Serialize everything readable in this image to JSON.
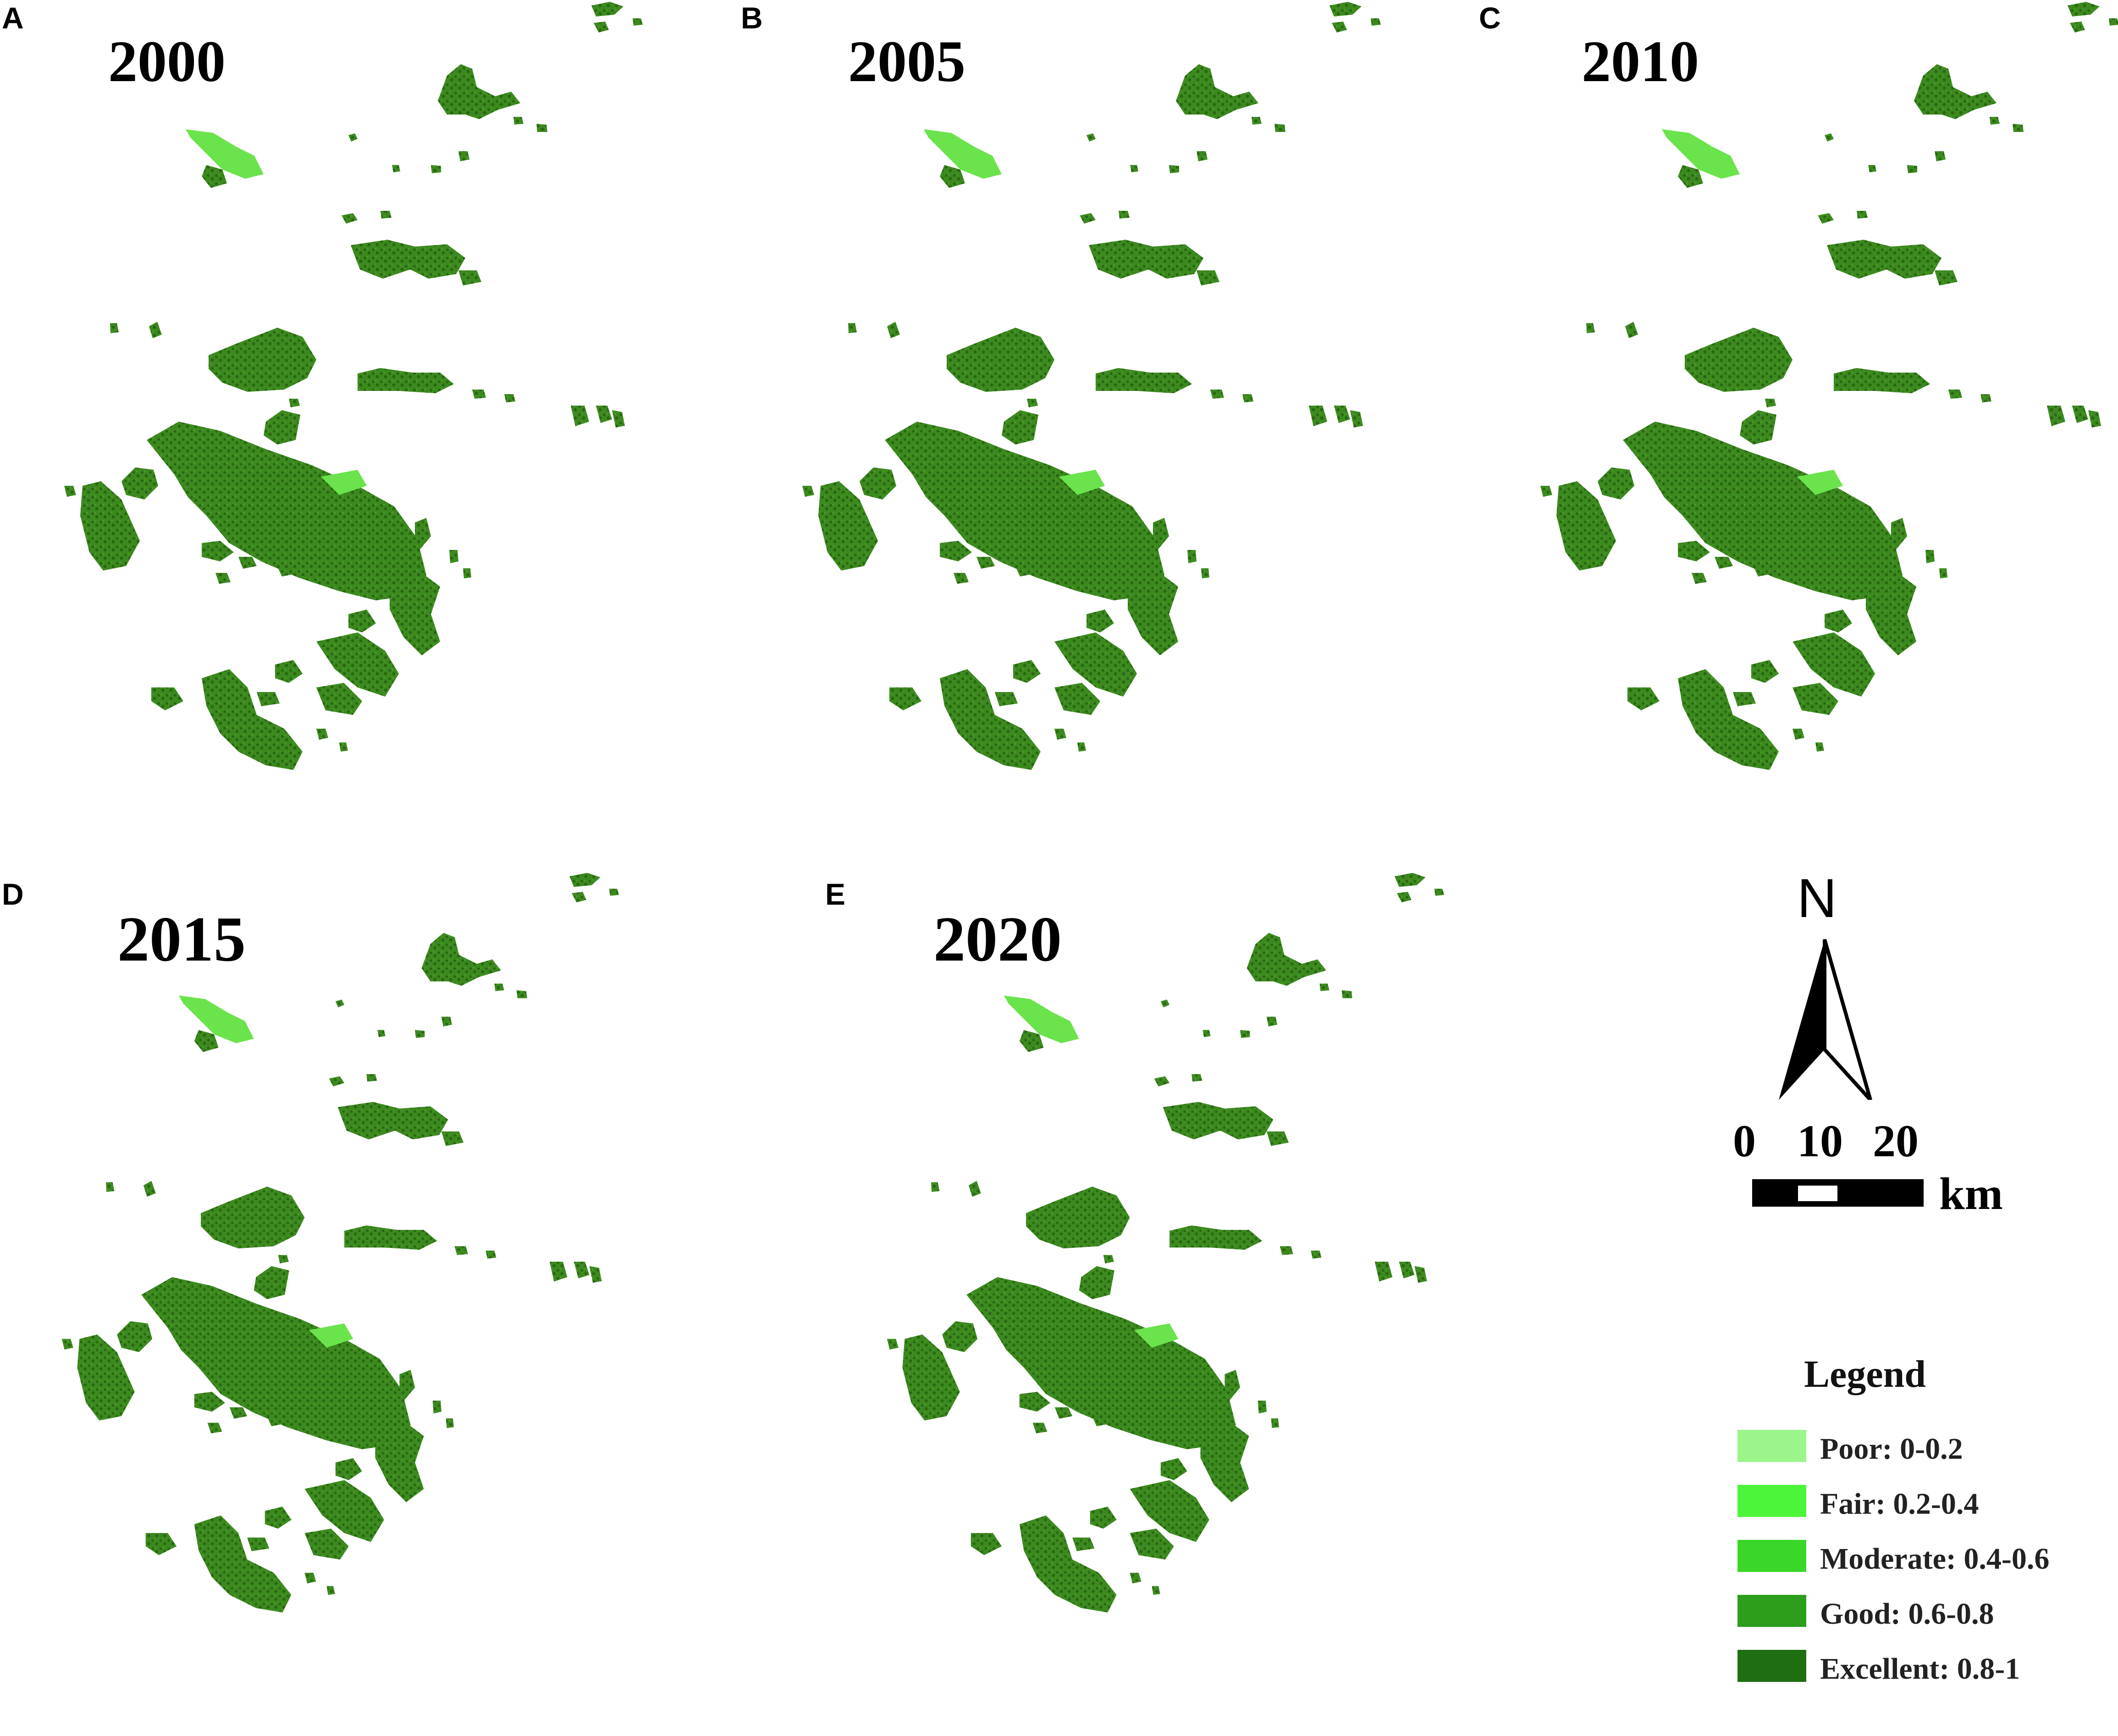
{
  "panels": [
    {
      "letter": "A",
      "year": "2000"
    },
    {
      "letter": "B",
      "year": "2005"
    },
    {
      "letter": "C",
      "year": "2010"
    },
    {
      "letter": "D",
      "year": "2015"
    },
    {
      "letter": "E",
      "year": "2020"
    }
  ],
  "north_arrow": {
    "label": "N"
  },
  "scale_bar": {
    "ticks": [
      "0",
      "10",
      "20"
    ],
    "unit": "km"
  },
  "legend": {
    "title": "Legend",
    "items": [
      {
        "label": "Poor: 0-0.2",
        "color": "#9cf58a"
      },
      {
        "label": "Fair: 0.2-0.4",
        "color": "#4df53a"
      },
      {
        "label": "Moderate: 0.4-0.6",
        "color": "#3bd62a"
      },
      {
        "label": "Good: 0.6-0.8",
        "color": "#2c9e1c"
      },
      {
        "label": "Excellent: 0.8-1",
        "color": "#1f6e12"
      }
    ]
  },
  "colors": {
    "excellent": "#2f7416",
    "good": "#3f8f22",
    "fair": "#6be34c",
    "poor": "#9cf58a"
  }
}
